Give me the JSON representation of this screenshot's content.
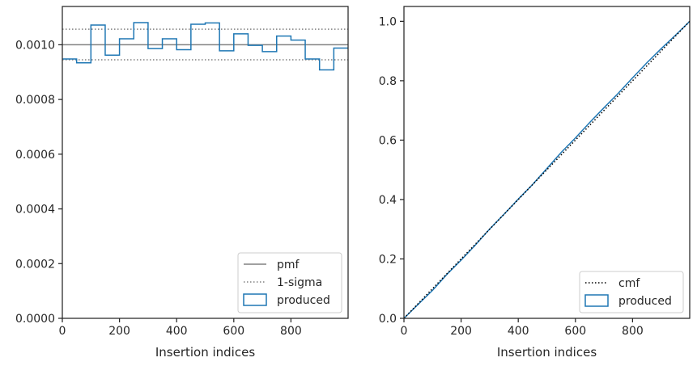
{
  "chart_data": [
    {
      "type": "step",
      "xlabel": "Insertion indices",
      "ylabel": "",
      "xlim": [
        0,
        1000
      ],
      "ylim": [
        0,
        0.00114
      ],
      "xticks": [
        0,
        200,
        400,
        600,
        800
      ],
      "xtick_labels": [
        "0",
        "200",
        "400",
        "600",
        "800"
      ],
      "yticks": [
        0,
        0.0002,
        0.0004,
        0.0006,
        0.0008,
        0.001
      ],
      "ytick_labels": [
        "0.0000",
        "0.0002",
        "0.0004",
        "0.0006",
        "0.0008",
        "0.0010"
      ],
      "grid": false,
      "legend_placement": "lower-right",
      "series": [
        {
          "name": "pmf",
          "style": "solid",
          "color": "#808080",
          "value": 0.001
        },
        {
          "name": "1-sigma",
          "style": "dotted",
          "color": "#808080",
          "values": [
            0.000945,
            0.001057
          ]
        },
        {
          "name": "produced",
          "style": "step",
          "color": "#1f77b4",
          "bin_edges": [
            0,
            50,
            100,
            150,
            200,
            250,
            300,
            350,
            400,
            450,
            500,
            550,
            600,
            650,
            700,
            750,
            800,
            850,
            900,
            950,
            1000
          ],
          "values": [
            0.000948,
            0.000934,
            0.001072,
            0.000962,
            0.001022,
            0.001081,
            0.000986,
            0.001022,
            0.000982,
            0.001075,
            0.00108,
            0.000978,
            0.00104,
            0.000998,
            0.000975,
            0.001032,
            0.001017,
            0.000948,
            0.000908,
            0.000988
          ]
        }
      ]
    },
    {
      "type": "line",
      "xlabel": "Insertion indices",
      "ylabel": "",
      "xlim": [
        0,
        1000
      ],
      "ylim": [
        0,
        1.05
      ],
      "xticks": [
        0,
        200,
        400,
        600,
        800
      ],
      "xtick_labels": [
        "0",
        "200",
        "400",
        "600",
        "800"
      ],
      "yticks": [
        0,
        0.2,
        0.4,
        0.6,
        0.8,
        1.0
      ],
      "ytick_labels": [
        "0.0",
        "0.2",
        "0.4",
        "0.6",
        "0.8",
        "1.0"
      ],
      "grid": false,
      "legend_placement": "lower-right",
      "series": [
        {
          "name": "cmf",
          "style": "dotted",
          "color": "#000000",
          "x": [
            0,
            1000
          ],
          "y": [
            0,
            1
          ]
        },
        {
          "name": "produced",
          "style": "step",
          "color": "#1f77b4",
          "x": [
            0,
            50,
            100,
            150,
            200,
            250,
            300,
            350,
            400,
            450,
            500,
            550,
            600,
            650,
            700,
            750,
            800,
            850,
            900,
            950,
            1000
          ],
          "y": [
            0,
            0.0474,
            0.0941,
            0.1477,
            0.1958,
            0.2469,
            0.301,
            0.3503,
            0.4014,
            0.4505,
            0.5043,
            0.5583,
            0.6072,
            0.6592,
            0.7091,
            0.7579,
            0.8095,
            0.8603,
            0.9077,
            0.9531,
            1.0
          ]
        }
      ]
    }
  ]
}
